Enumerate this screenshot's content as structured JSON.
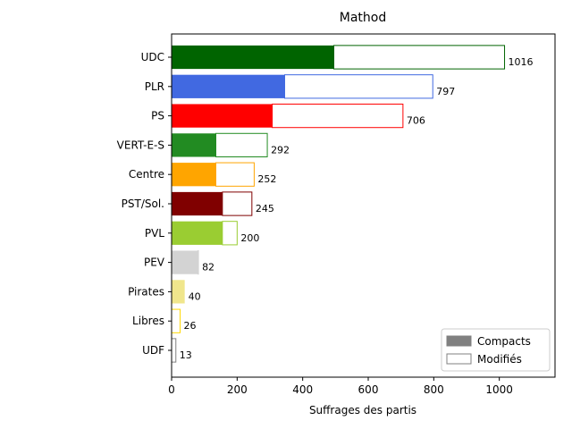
{
  "chart_data": {
    "type": "bar",
    "orientation": "horizontal",
    "stacked": true,
    "title": "Mathod",
    "xlabel": "Suffrages des partis",
    "ylabel": "",
    "xlim": [
      0,
      1170
    ],
    "xticks": [
      0,
      200,
      400,
      600,
      800,
      1000
    ],
    "grid": false,
    "legend_position": "bottom-right",
    "categories": [
      "UDC",
      "PLR",
      "PS",
      "VERT-E-S",
      "Centre",
      "PST/Sol.",
      "PVL",
      "PEV",
      "Pirates",
      "Libres",
      "UDF"
    ],
    "colors": [
      "#006400",
      "#4169e1",
      "#ff0000",
      "#228b22",
      "#ffa500",
      "#800000",
      "#9acd32",
      "#d3d3d3",
      "#f0e68c",
      "#ffd700",
      "#808080"
    ],
    "series": [
      {
        "name": "Compacts",
        "values": [
          495,
          345,
          307,
          135,
          135,
          155,
          155,
          80,
          40,
          0,
          0
        ]
      },
      {
        "name": "Modifiés",
        "values": [
          521,
          452,
          399,
          157,
          117,
          90,
          45,
          2,
          0,
          26,
          13
        ]
      }
    ],
    "totals": [
      "1016",
      "797",
      "706",
      "292",
      "252",
      "245",
      "200",
      "82",
      "40",
      "26",
      "13"
    ],
    "legend": [
      {
        "label": "Compacts",
        "style": "filled",
        "color": "#808080"
      },
      {
        "label": "Modifiés",
        "style": "outline",
        "color": "#808080"
      }
    ]
  }
}
